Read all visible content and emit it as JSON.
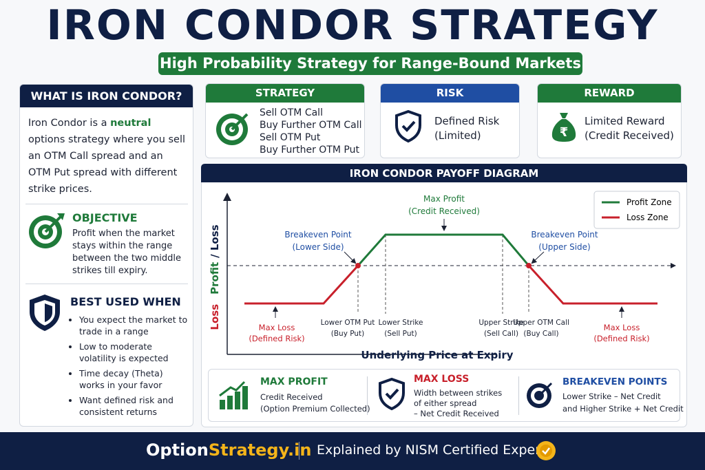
{
  "header": {
    "title": "IRON CONDOR STRATEGY",
    "subtitle": "High Probability Strategy for Range-Bound Markets"
  },
  "sidebar": {
    "heading": "WHAT IS IRON CONDOR?",
    "intro_before": "Iron Condor is a ",
    "intro_highlight": "neutral",
    "intro_after": " options strategy where you sell an OTM Call spread and an OTM Put spread with different strike prices.",
    "objective": {
      "title": "OBJECTIVE",
      "text": "Profit when the market stays within the range between the two middle strikes till expiry."
    },
    "best_used": {
      "title": "BEST USED WHEN",
      "items": [
        "You expect the market to trade in a range",
        "Low to moderate volatility is expected",
        "Time decay (Theta) works in your favor",
        "Want defined risk and consistent returns"
      ]
    }
  },
  "cards": [
    {
      "title": "STRATEGY",
      "lines": [
        "Sell OTM Call",
        "Buy Further OTM Call",
        "Sell OTM Put",
        "Buy Further OTM Put"
      ]
    },
    {
      "title": "RISK",
      "lines": [
        "Defined Risk",
        "(Limited)"
      ]
    },
    {
      "title": "REWARD",
      "lines": [
        "Limited Reward",
        "(Credit Received)"
      ]
    }
  ],
  "diagram": {
    "title": "IRON CONDOR PAYOFF DIAGRAM",
    "y_axis": {
      "loss": "Loss",
      "profit": "Profit",
      "rest": "/ Loss"
    },
    "x_axis": "Underlying Price at Expiry",
    "legend": [
      "Profit Zone",
      "Loss Zone"
    ],
    "max_profit": [
      "Max Profit",
      "(Credit Received)"
    ],
    "breakeven_lower": [
      "Breakeven Point",
      "(Lower Side)"
    ],
    "breakeven_upper": [
      "Breakeven Point",
      "(Upper Side)"
    ],
    "max_loss_left": [
      "Max Loss",
      "(Defined Risk)"
    ],
    "max_loss_right": [
      "Max Loss",
      "(Defined Risk)"
    ],
    "strikes": [
      [
        "Lower OTM Put",
        "(Buy Put)"
      ],
      [
        "Lower Strike",
        "(Sell Put)"
      ],
      [
        "Upper Strike",
        "(Sell Call)"
      ],
      [
        "Upper OTM Call",
        "(Buy Call)"
      ]
    ]
  },
  "summary": [
    {
      "title": "MAX PROFIT",
      "lines": [
        "Credit Received",
        "(Option Premium Collected)"
      ]
    },
    {
      "title": "MAX LOSS",
      "lines": [
        "Width between strikes",
        "of either spread",
        "– Net Credit Received"
      ]
    },
    {
      "title": "BREAKEVEN POINTS",
      "lines": [
        "Lower Strike – Net Credit",
        "and Higher Strike + Net Credit"
      ]
    }
  ],
  "footer": {
    "brand_a": "Option",
    "brand_b": "Strategy.in",
    "tagline": "Explained by NISM Certified Expert"
  }
}
